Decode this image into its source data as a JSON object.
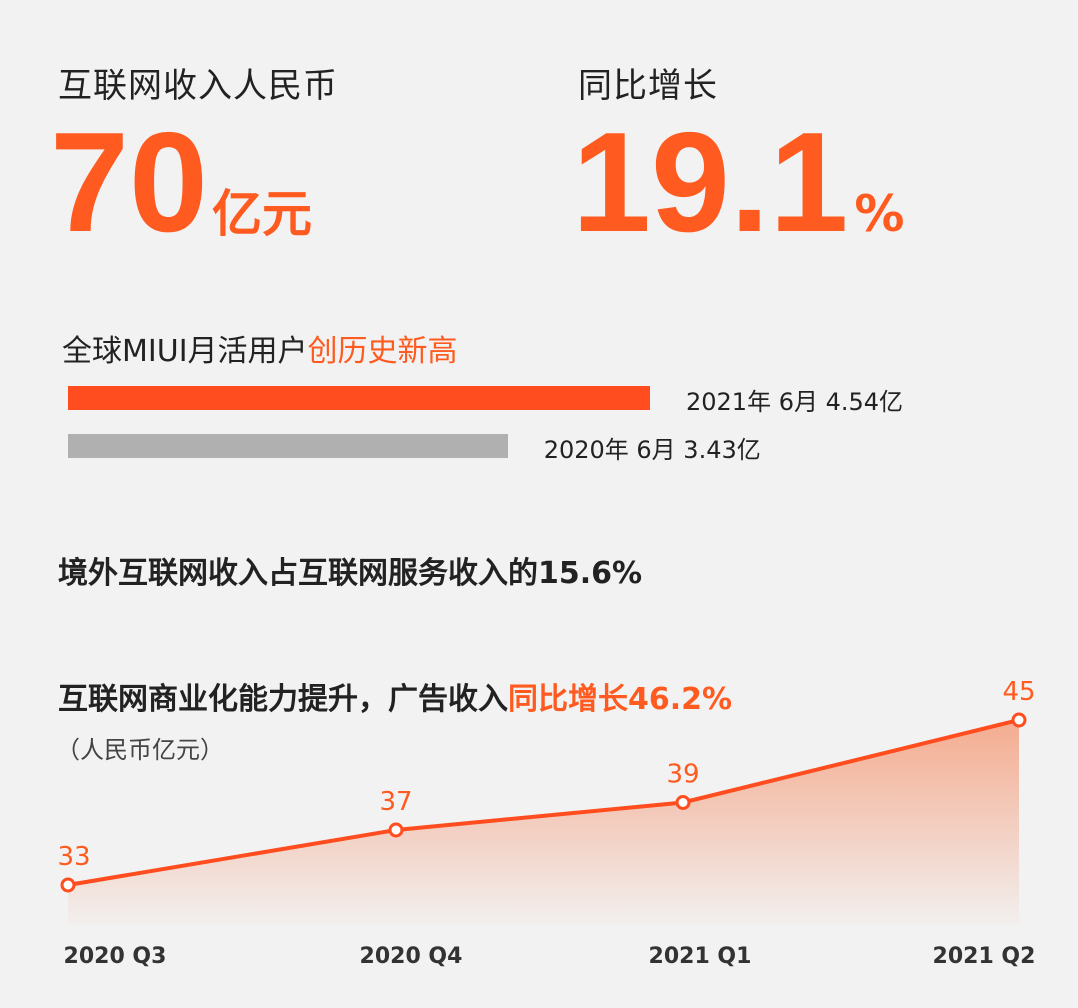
{
  "revenue": {
    "label": "互联网收入人民币",
    "value": "70",
    "unit": "亿元"
  },
  "growth": {
    "label": "同比增长",
    "value": "19.1",
    "unit": "%"
  },
  "miui": {
    "title_prefix": "全球MIUI月活用户",
    "title_highlight": "创历史新高",
    "bars": [
      {
        "period": "2021年 6月",
        "value": 4.54,
        "label": "2021年 6月  4.54亿",
        "color": "#ff4d1f"
      },
      {
        "period": "2020年 6月",
        "value": 3.43,
        "label": "2020年 6月  3.43亿",
        "color": "#b0b0b0"
      }
    ]
  },
  "overseas": {
    "text": "境外互联网收入占互联网服务收入的15.6%"
  },
  "ad": {
    "title_prefix": "互联网商业化能力提升，广告收入",
    "title_highlight": "同比增长46.2%",
    "unit_note": "（人民币亿元）"
  },
  "chart_data": {
    "type": "area",
    "title": "互联网商业化能力提升，广告收入同比增长46.2%",
    "ylabel": "（人民币亿元）",
    "categories": [
      "2020 Q3",
      "2020 Q4",
      "2021 Q1",
      "2021 Q2"
    ],
    "values": [
      33,
      37,
      39,
      45
    ],
    "data_labels": [
      "33",
      "37",
      "39",
      "45"
    ],
    "ylim": [
      29,
      45
    ],
    "grid": false,
    "line_color": "#ff4d1f",
    "fill_color": "#f5b39a"
  }
}
